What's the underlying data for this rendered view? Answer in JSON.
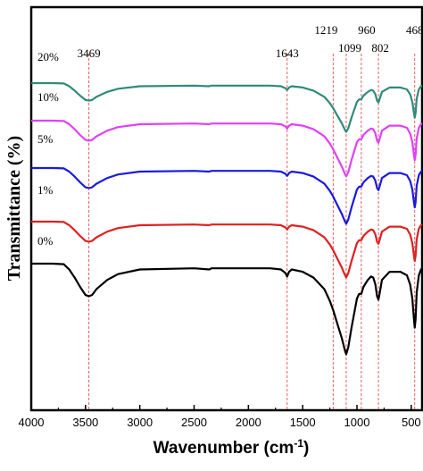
{
  "chart_data": {
    "type": "line",
    "xlabel": "Wavenumber (cm",
    "xlabel_sup": "-1",
    "xlabel_close": ")",
    "ylabel": "Transmittance (%)",
    "xlim": [
      4000,
      400
    ],
    "x_reversed": true,
    "y_ticks_shown": false,
    "grid": false,
    "x_ticks": [
      4000,
      3500,
      3000,
      2500,
      2000,
      1500,
      1000,
      500
    ],
    "x_tick_labels": [
      "4000",
      "3500",
      "3000",
      "2500",
      "2000",
      "1500",
      "1000",
      "500"
    ],
    "peaks": [
      {
        "x": 3469,
        "label": "3469"
      },
      {
        "x": 1643,
        "label": "1643"
      },
      {
        "x": 1219,
        "label": "1219"
      },
      {
        "x": 1099,
        "label": "1099"
      },
      {
        "x": 960,
        "label": "960"
      },
      {
        "x": 802,
        "label": "802"
      },
      {
        "x": 468,
        "label": "468"
      }
    ],
    "series": [
      {
        "name": "20%",
        "color": "#2e8b7a",
        "offset": 4
      },
      {
        "name": "10%",
        "color": "#e040fb",
        "offset": 3
      },
      {
        "name": "5%",
        "color": "#1a1adf",
        "offset": 2
      },
      {
        "name": "1%",
        "color": "#e02020",
        "offset": 1
      },
      {
        "name": "0%",
        "color": "#000000",
        "offset": 0
      }
    ],
    "shape_x": [
      4000,
      3800,
      3700,
      3650,
      3600,
      3550,
      3500,
      3469,
      3440,
      3400,
      3300,
      3200,
      3000,
      2500,
      2360,
      2340,
      2000,
      1800,
      1700,
      1660,
      1643,
      1625,
      1600,
      1500,
      1400,
      1300,
      1250,
      1219,
      1180,
      1140,
      1110,
      1099,
      1080,
      1050,
      1000,
      980,
      960,
      940,
      900,
      870,
      850,
      830,
      815,
      802,
      790,
      770,
      700,
      600,
      540,
      510,
      490,
      475,
      468,
      460,
      450,
      430,
      410,
      400
    ],
    "shape_y": [
      100,
      100,
      99.5,
      95,
      88,
      80,
      73,
      72,
      73,
      78,
      86,
      91,
      95,
      96,
      95,
      96,
      96,
      96,
      95,
      92,
      89,
      93,
      95,
      93,
      88,
      78,
      68,
      60,
      48,
      36,
      25,
      22,
      28,
      45,
      70,
      74,
      74,
      80,
      86,
      89,
      88,
      82,
      72,
      69,
      75,
      86,
      93,
      93,
      90,
      82,
      70,
      52,
      45,
      52,
      75,
      90,
      95,
      96
    ]
  }
}
